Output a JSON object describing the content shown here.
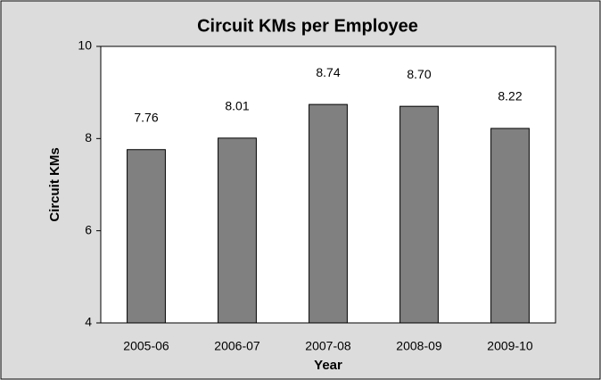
{
  "chart_data": {
    "type": "bar",
    "title": "Circuit KMs per Employee",
    "x_label": "Year",
    "y_label": "Circuit KMs",
    "categories": [
      "2005-06",
      "2006-07",
      "2007-08",
      "2008-09",
      "2009-10"
    ],
    "values": [
      7.76,
      8.01,
      8.74,
      8.7,
      8.22
    ],
    "value_labels": [
      "7.76",
      "8.01",
      "8.74",
      "8.70",
      "8.22"
    ],
    "color": "#808080",
    "ylim": [
      4,
      10
    ],
    "yticks": [
      4,
      6,
      8,
      10
    ],
    "grid": false
  }
}
